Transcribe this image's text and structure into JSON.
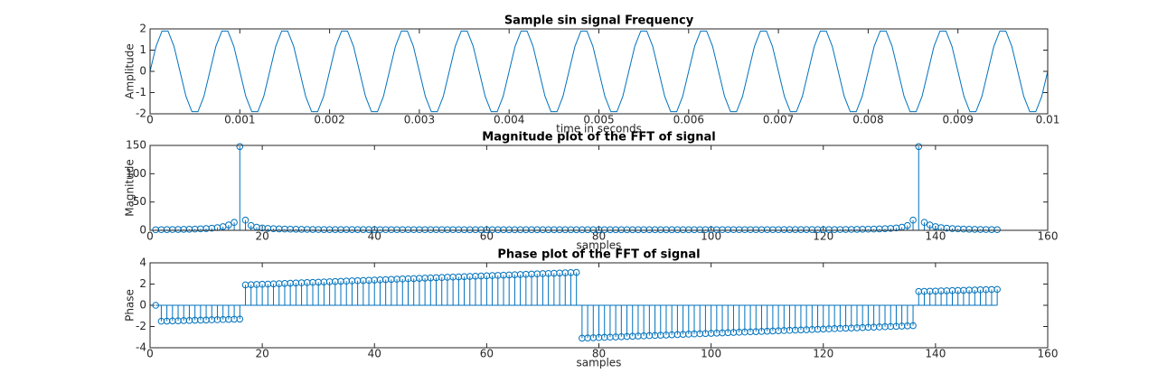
{
  "chart_data": [
    {
      "type": "line",
      "title": "Sample sin signal Frequency",
      "xlabel": "time in seconds",
      "ylabel": "Amplitude",
      "color": "#0072bd",
      "x": [
        0,
        6.67e-05,
        0.0001333,
        0.0002,
        0.0002667,
        0.0003333,
        0.0004,
        0.0004667,
        0.0005333,
        0.0006,
        0.0006667,
        0.0007333,
        0.0008,
        0.0008667,
        0.0009333,
        0.001,
        0.0010667,
        0.0011333,
        0.0012,
        0.0012667,
        0.0013333,
        0.0014,
        0.0014667,
        0.0015333,
        0.0016,
        0.0016667,
        0.0017333,
        0.0018,
        0.0018667,
        0.0019333,
        0.002,
        0.0020667,
        0.0021333,
        0.0022,
        0.0022667,
        0.0023333,
        0.0024,
        0.0024667,
        0.0025333,
        0.0026,
        0.0026667,
        0.0027333,
        0.0028,
        0.0028667,
        0.0029333,
        0.003,
        0.0030667,
        0.0031333,
        0.0032,
        0.0032667,
        0.0033333,
        0.0034,
        0.0034667,
        0.0035333,
        0.0036,
        0.0036667,
        0.0037333,
        0.0038,
        0.0038667,
        0.0039333,
        0.004,
        0.0040667,
        0.0041333,
        0.0042,
        0.0042667,
        0.0043333,
        0.0044,
        0.0044667,
        0.0045333,
        0.0046,
        0.0046667,
        0.0047333,
        0.0048,
        0.0048667,
        0.0049333,
        0.005,
        0.0050667,
        0.0051333,
        0.0052,
        0.0052667,
        0.0053333,
        0.0054,
        0.0054667,
        0.0055333,
        0.0056,
        0.0056667,
        0.0057333,
        0.0058,
        0.0058667,
        0.0059333,
        0.006,
        0.0060667,
        0.0061333,
        0.0062,
        0.0062667,
        0.0063333,
        0.0064,
        0.0064667,
        0.0065333,
        0.0066,
        0.0066667,
        0.0067333,
        0.0068,
        0.0068667,
        0.0069333,
        0.007,
        0.0070667,
        0.0071333,
        0.0072,
        0.0072667,
        0.0073333,
        0.0074,
        0.0074667,
        0.0075333,
        0.0076,
        0.0076667,
        0.0077333,
        0.0078,
        0.0078667,
        0.0079333,
        0.008,
        0.0080667,
        0.0081333,
        0.0082,
        0.0082667,
        0.0083333,
        0.0084,
        0.0084667,
        0.0085333,
        0.0086,
        0.0086667,
        0.0087333,
        0.0088,
        0.0088667,
        0.0089333,
        0.009,
        0.0090667,
        0.0091333,
        0.0092,
        0.0092667,
        0.0093333,
        0.0094,
        0.0094667,
        0.0095333,
        0.0096,
        0.0096667,
        0.0097333,
        0.0098,
        0.0098667,
        0.0099333,
        0.01
      ],
      "values": [
        0,
        1.18,
        1.9,
        1.9,
        1.18,
        0,
        -1.18,
        -1.9,
        -1.9,
        -1.18,
        0,
        1.18,
        1.9,
        1.9,
        1.18,
        0,
        -1.18,
        -1.9,
        -1.9,
        -1.18,
        0,
        1.18,
        1.9,
        1.9,
        1.18,
        0,
        -1.18,
        -1.9,
        -1.9,
        -1.18,
        0,
        1.18,
        1.9,
        1.9,
        1.18,
        0,
        -1.18,
        -1.9,
        -1.9,
        -1.18,
        0,
        1.18,
        1.9,
        1.9,
        1.18,
        0,
        -1.18,
        -1.9,
        -1.9,
        -1.18,
        0,
        1.18,
        1.9,
        1.9,
        1.18,
        0,
        -1.18,
        -1.9,
        -1.9,
        -1.18,
        0,
        1.18,
        1.9,
        1.9,
        1.18,
        0,
        -1.18,
        -1.9,
        -1.9,
        -1.18,
        0,
        1.18,
        1.9,
        1.9,
        1.18,
        0,
        -1.18,
        -1.9,
        -1.9,
        -1.18,
        0,
        1.18,
        1.9,
        1.9,
        1.18,
        0,
        -1.18,
        -1.9,
        -1.9,
        -1.18,
        0,
        1.18,
        1.9,
        1.9,
        1.18,
        0,
        -1.18,
        -1.9,
        -1.9,
        -1.18,
        0,
        1.18,
        1.9,
        1.9,
        1.18,
        0,
        -1.18,
        -1.9,
        -1.9,
        -1.18,
        0,
        1.18,
        1.9,
        1.9,
        1.18,
        0,
        -1.18,
        -1.9,
        -1.9,
        -1.18,
        0,
        1.18,
        1.9,
        1.9,
        1.18,
        0,
        -1.18,
        -1.9,
        -1.9,
        -1.18,
        0,
        1.18,
        1.9,
        1.9,
        1.18,
        0,
        -1.18,
        -1.9,
        -1.9,
        -1.18,
        0,
        1.18,
        1.9,
        1.9,
        1.18,
        0,
        -1.18,
        -1.9,
        -1.9,
        -1.18,
        0
      ],
      "xlim": [
        0,
        0.01
      ],
      "xticks": [
        0,
        0.001,
        0.002,
        0.003,
        0.004,
        0.005,
        0.006,
        0.007,
        0.008,
        0.009,
        0.01
      ],
      "ylim": [
        -2,
        2
      ],
      "yticks": [
        -2,
        -1,
        0,
        1,
        2
      ]
    },
    {
      "type": "stem",
      "title": "Magnitude plot of the FFT of signal",
      "xlabel": "samples",
      "ylabel": "Magnitude",
      "color": "#0072bd",
      "x": [
        1,
        2,
        3,
        4,
        5,
        6,
        7,
        8,
        9,
        10,
        11,
        12,
        13,
        14,
        15,
        16,
        17,
        18,
        19,
        20,
        21,
        22,
        23,
        24,
        25,
        26,
        27,
        28,
        29,
        30,
        31,
        32,
        33,
        34,
        35,
        36,
        37,
        38,
        39,
        40,
        41,
        42,
        43,
        44,
        45,
        46,
        47,
        48,
        49,
        50,
        51,
        52,
        53,
        54,
        55,
        56,
        57,
        58,
        59,
        60,
        61,
        62,
        63,
        64,
        65,
        66,
        67,
        68,
        69,
        70,
        71,
        72,
        73,
        74,
        75,
        76,
        77,
        78,
        79,
        80,
        81,
        82,
        83,
        84,
        85,
        86,
        87,
        88,
        89,
        90,
        91,
        92,
        93,
        94,
        95,
        96,
        97,
        98,
        99,
        100,
        101,
        102,
        103,
        104,
        105,
        106,
        107,
        108,
        109,
        110,
        111,
        112,
        113,
        114,
        115,
        116,
        117,
        118,
        119,
        120,
        121,
        122,
        123,
        124,
        125,
        126,
        127,
        128,
        129,
        130,
        131,
        132,
        133,
        134,
        135,
        136,
        137,
        138,
        139,
        140,
        141,
        142,
        143,
        144,
        145,
        146,
        147,
        148,
        149,
        150,
        151
      ],
      "values": [
        1,
        1.2,
        1.3,
        1.4,
        1.5,
        1.7,
        1.9,
        2.2,
        2.6,
        3.1,
        3.8,
        4.8,
        6.5,
        9.5,
        14,
        148,
        18,
        8.5,
        5.5,
        4.2,
        3.4,
        2.9,
        2.5,
        2.2,
        2,
        1.9,
        1.7,
        1.6,
        1.5,
        1.4,
        1.3,
        1.3,
        1.3,
        1.3,
        1.3,
        1.3,
        1.3,
        1.3,
        1.3,
        1.3,
        1.2,
        1.2,
        1.2,
        1.2,
        1.2,
        1.2,
        1.2,
        1.2,
        1.2,
        1.2,
        1.2,
        1.2,
        1.2,
        1.2,
        1.2,
        1.1,
        1.1,
        1.1,
        1.1,
        1.1,
        1.1,
        1.1,
        1.1,
        1.1,
        1.1,
        1.1,
        1.1,
        1.1,
        1.1,
        1.1,
        1.1,
        1.1,
        1.1,
        1.1,
        1.1,
        1.1,
        1.1,
        1.1,
        1.1,
        1.1,
        1.1,
        1.1,
        1.1,
        1.1,
        1.1,
        1.1,
        1.1,
        1.1,
        1.1,
        1.1,
        1.1,
        1.1,
        1.1,
        1.1,
        1.1,
        1.1,
        1.1,
        1.2,
        1.2,
        1.2,
        1.2,
        1.2,
        1.2,
        1.2,
        1.2,
        1.2,
        1.2,
        1.2,
        1.2,
        1.2,
        1.2,
        1.2,
        1.3,
        1.3,
        1.3,
        1.3,
        1.3,
        1.3,
        1.3,
        1.3,
        1.3,
        1.3,
        1.4,
        1.5,
        1.6,
        1.7,
        1.9,
        2,
        2.2,
        2.5,
        2.9,
        3.4,
        4.2,
        5.5,
        8.5,
        18,
        148,
        14,
        9.5,
        6.5,
        4.8,
        3.8,
        3.1,
        2.6,
        2.2,
        1.9,
        1.7,
        1.5,
        1.4,
        1.3,
        1.2
      ],
      "xlim": [
        0,
        160
      ],
      "xticks": [
        0,
        20,
        40,
        60,
        80,
        100,
        120,
        140,
        160
      ],
      "ylim": [
        0,
        150
      ],
      "yticks": [
        0,
        50,
        100,
        150
      ]
    },
    {
      "type": "stem",
      "title": "Phase plot of the FFT of signal",
      "xlabel": "samples",
      "ylabel": "Phase",
      "color": "#0072bd",
      "x": [
        1,
        2,
        3,
        4,
        5,
        6,
        7,
        8,
        9,
        10,
        11,
        12,
        13,
        14,
        15,
        16,
        17,
        18,
        19,
        20,
        21,
        22,
        23,
        24,
        25,
        26,
        27,
        28,
        29,
        30,
        31,
        32,
        33,
        34,
        35,
        36,
        37,
        38,
        39,
        40,
        41,
        42,
        43,
        44,
        45,
        46,
        47,
        48,
        49,
        50,
        51,
        52,
        53,
        54,
        55,
        56,
        57,
        58,
        59,
        60,
        61,
        62,
        63,
        64,
        65,
        66,
        67,
        68,
        69,
        70,
        71,
        72,
        73,
        74,
        75,
        76,
        77,
        78,
        79,
        80,
        81,
        82,
        83,
        84,
        85,
        86,
        87,
        88,
        89,
        90,
        91,
        92,
        93,
        94,
        95,
        96,
        97,
        98,
        99,
        100,
        101,
        102,
        103,
        104,
        105,
        106,
        107,
        108,
        109,
        110,
        111,
        112,
        113,
        114,
        115,
        116,
        117,
        118,
        119,
        120,
        121,
        122,
        123,
        124,
        125,
        126,
        127,
        128,
        129,
        130,
        131,
        132,
        133,
        134,
        135,
        136,
        137,
        138,
        139,
        140,
        141,
        142,
        143,
        144,
        145,
        146,
        147,
        148,
        149,
        150,
        151
      ],
      "values": [
        0,
        -1.5,
        -1.49,
        -1.47,
        -1.46,
        -1.44,
        -1.43,
        -1.41,
        -1.4,
        -1.39,
        -1.37,
        -1.36,
        -1.34,
        -1.33,
        -1.31,
        -1.3,
        1.92,
        1.94,
        1.96,
        1.98,
        2,
        2.02,
        2.04,
        2.06,
        2.08,
        2.1,
        2.12,
        2.14,
        2.16,
        2.18,
        2.2,
        2.22,
        2.24,
        2.26,
        2.28,
        2.3,
        2.32,
        2.34,
        2.36,
        2.38,
        2.4,
        2.42,
        2.44,
        2.46,
        2.48,
        2.5,
        2.52,
        2.54,
        2.56,
        2.58,
        2.6,
        2.62,
        2.64,
        2.66,
        2.68,
        2.7,
        2.72,
        2.74,
        2.76,
        2.78,
        2.8,
        2.82,
        2.84,
        2.86,
        2.88,
        2.9,
        2.92,
        2.94,
        2.96,
        2.98,
        3,
        3.02,
        3.04,
        3.06,
        3.08,
        3.1,
        -3.1,
        -3.08,
        -3.06,
        -3.04,
        -3.02,
        -3,
        -2.98,
        -2.96,
        -2.94,
        -2.92,
        -2.9,
        -2.88,
        -2.86,
        -2.84,
        -2.82,
        -2.8,
        -2.78,
        -2.76,
        -2.74,
        -2.72,
        -2.7,
        -2.68,
        -2.66,
        -2.64,
        -2.62,
        -2.6,
        -2.58,
        -2.56,
        -2.54,
        -2.52,
        -2.5,
        -2.48,
        -2.46,
        -2.44,
        -2.42,
        -2.4,
        -2.38,
        -2.36,
        -2.34,
        -2.32,
        -2.3,
        -2.28,
        -2.26,
        -2.24,
        -2.22,
        -2.2,
        -2.18,
        -2.16,
        -2.14,
        -2.12,
        -2.1,
        -2.08,
        -2.06,
        -2.04,
        -2.02,
        -2,
        -1.98,
        -1.96,
        -1.94,
        -1.92,
        1.3,
        1.31,
        1.33,
        1.34,
        1.36,
        1.37,
        1.39,
        1.4,
        1.41,
        1.43,
        1.44,
        1.46,
        1.47,
        1.49,
        1.5
      ],
      "xlim": [
        0,
        160
      ],
      "xticks": [
        0,
        20,
        40,
        60,
        80,
        100,
        120,
        140,
        160
      ],
      "ylim": [
        -4,
        4
      ],
      "yticks": [
        -4,
        -2,
        0,
        2,
        4
      ]
    }
  ]
}
